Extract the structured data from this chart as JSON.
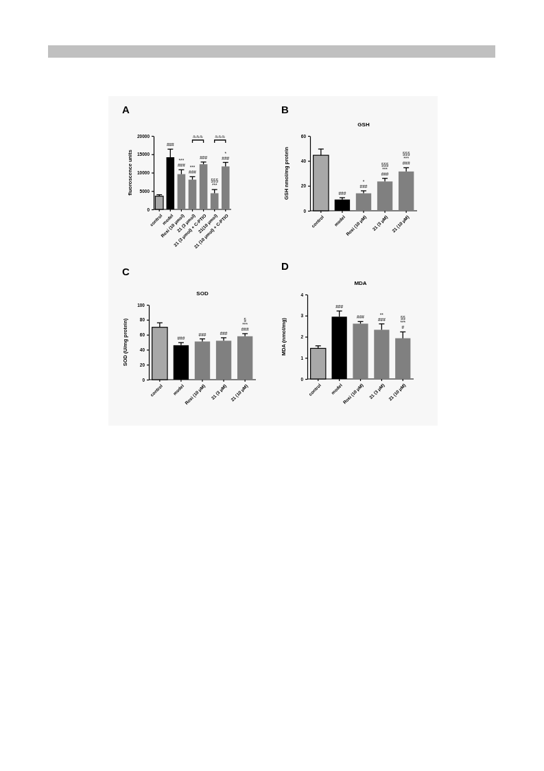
{
  "chart_data": [
    {
      "type": "bar",
      "title": "A",
      "ylabel": "fluoroscence units",
      "categories": [
        "control",
        "model",
        "Rosi (10 μmol)",
        "21 (3 μmol)",
        "21 (3 μmol) + C-PTIO",
        "21(10 μmol)",
        "21 (10 μmol) + C-PTIO"
      ],
      "values": [
        3600,
        14200,
        9600,
        8100,
        12300,
        4400,
        11700
      ],
      "errors": [
        400,
        2200,
        1200,
        800,
        600,
        1000,
        1100
      ],
      "colors": [
        "#a8a8a8",
        "#000000",
        "#808080",
        "#808080",
        "#808080",
        "#808080",
        "#808080"
      ],
      "ylim": [
        0,
        20000
      ],
      "yticks": [
        0,
        5000,
        10000,
        15000,
        20000
      ],
      "annotations": [
        {
          "text": "###",
          "x": "model",
          "y": 16400
        },
        {
          "text": "###",
          "x": "Rosi (10 μmol)",
          "y": 10800
        },
        {
          "text": "***",
          "x": "Rosi (10 μmol)",
          "y": 10800
        },
        {
          "text": "###",
          "x": "21 (3 μmol)",
          "y": 8900
        },
        {
          "text": "***",
          "x": "21 (3 μmol)",
          "y": 8900
        },
        {
          "text": "###",
          "x": "21 (3 μmol) + C-PTIO",
          "y": 12900
        },
        {
          "text": "***",
          "x": "21(10 μmol)",
          "y": 5400
        },
        {
          "text": "§§§",
          "x": "21(10 μmol)",
          "y": 5400
        },
        {
          "text": "###",
          "x": "21 (10 μmol) + C-PTIO",
          "y": 12800
        },
        {
          "text": "*",
          "x": "21 (10 μmol) + C-PTIO",
          "y": 12800
        },
        "&&&",
        "&&&"
      ]
    },
    {
      "type": "bar",
      "title": "B",
      "subtitle": "GSH",
      "ylabel": "GSH nmol/mg protein",
      "categories": [
        "control",
        "model",
        "Rosi (10 μM)",
        "21 (3 μM)",
        "21 (10 μM)"
      ],
      "values": [
        44.5,
        9,
        14,
        23.5,
        31.5
      ],
      "errors": [
        5,
        1.5,
        2,
        2.5,
        3
      ],
      "colors": [
        "#a8a8a8",
        "#000000",
        "#808080",
        "#808080",
        "#808080"
      ],
      "ylim": [
        0,
        60
      ],
      "yticks": [
        0,
        20,
        40,
        60
      ],
      "annotations": [
        {
          "text": "###",
          "x": "model",
          "y": 10.5
        },
        {
          "text": "###",
          "x": "Rosi (10 μM)",
          "y": 16
        },
        {
          "text": "*",
          "x": "Rosi (10 μM)",
          "y": 16
        },
        {
          "text": "###",
          "x": "21 (3 μM)",
          "y": 26
        },
        {
          "text": "***",
          "x": "21 (3 μM)",
          "y": 26
        },
        {
          "text": "§§§",
          "x": "21 (3 μM)",
          "y": 26
        },
        {
          "text": "###",
          "x": "21 (10 μM)",
          "y": 34.5
        },
        {
          "text": "***",
          "x": "21 (10 μM)",
          "y": 34.5
        },
        {
          "text": "§§§",
          "x": "21 (10 μM)",
          "y": 34.5
        }
      ]
    },
    {
      "type": "bar",
      "title": "C",
      "subtitle": "SOD",
      "ylabel": "SOD (U/mg protein)",
      "categories": [
        "control",
        "model",
        "Rosi (10 μM)",
        "21 (3 μM)",
        "21 (10 μM)"
      ],
      "values": [
        70,
        46,
        51,
        52,
        58
      ],
      "errors": [
        6,
        3.5,
        3.5,
        4,
        3.5
      ],
      "colors": [
        "#a8a8a8",
        "#000000",
        "#808080",
        "#808080",
        "#808080"
      ],
      "ylim": [
        0,
        100
      ],
      "yticks": [
        0,
        20,
        40,
        60,
        80,
        100
      ],
      "annotations": [
        {
          "text": "###",
          "x": "model",
          "y": 49.5
        },
        {
          "text": "###",
          "x": "Rosi (10 μM)",
          "y": 54.5
        },
        {
          "text": "###",
          "x": "21 (3 μM)",
          "y": 56
        },
        {
          "text": "###",
          "x": "21 (10 μM)",
          "y": 61.5
        },
        {
          "text": "***",
          "x": "21 (10 μM)",
          "y": 61.5
        },
        {
          "text": "§",
          "x": "21 (10 μM)",
          "y": 61.5
        }
      ]
    },
    {
      "type": "bar",
      "title": "D",
      "subtitle": "MDA",
      "ylabel": "MDA (nmol/mg)",
      "categories": [
        "control",
        "model",
        "Rosi (10 μM)",
        "21 (3 μM)",
        "21 (10 μM)"
      ],
      "values": [
        1.45,
        2.95,
        2.62,
        2.33,
        1.93
      ],
      "errors": [
        0.12,
        0.27,
        0.1,
        0.28,
        0.3
      ],
      "colors": [
        "#a8a8a8",
        "#000000",
        "#808080",
        "#808080",
        "#808080"
      ],
      "ylim": [
        0,
        4
      ],
      "yticks": [
        0,
        1,
        2,
        3,
        4
      ],
      "annotations": [
        {
          "text": "###",
          "x": "model",
          "y": 3.22
        },
        {
          "text": "###",
          "x": "Rosi (10 μM)",
          "y": 2.72
        },
        {
          "text": "###",
          "x": "21 (3 μM)",
          "y": 2.61
        },
        {
          "text": "**",
          "x": "21 (3 μM)",
          "y": 2.61
        },
        {
          "text": "#",
          "x": "21 (10 μM)",
          "y": 2.23
        },
        {
          "text": "***",
          "x": "21 (10 μM)",
          "y": 2.23
        },
        {
          "text": "§§",
          "x": "21 (10 μM)",
          "y": 2.23
        }
      ]
    }
  ]
}
